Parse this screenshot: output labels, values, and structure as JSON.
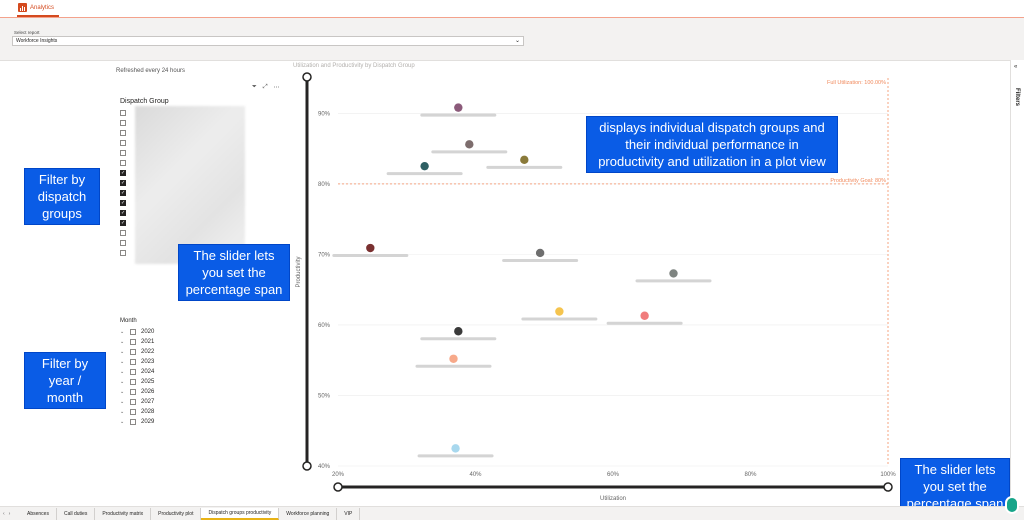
{
  "app": {
    "tab_label": "Analytics"
  },
  "report_selector": {
    "label": "Select report",
    "value": "Workforce Insights"
  },
  "filters_pane": {
    "label": "Filters",
    "collapse_icon": "double-chevron-icon"
  },
  "slicer": {
    "refresh_text": "Refreshed every 24 hours",
    "dispatch_group_title": "Dispatch Group",
    "dispatch_checks": [
      false,
      false,
      false,
      false,
      false,
      false,
      true,
      true,
      true,
      true,
      true,
      true,
      false,
      false,
      false
    ],
    "month_title": "Month",
    "years": [
      "2020",
      "2021",
      "2022",
      "2023",
      "2024",
      "2025",
      "2026",
      "2027",
      "2028",
      "2029"
    ]
  },
  "callouts": {
    "filter_dispatch": "Filter by dispatch groups",
    "slider_left": "The slider lets you set the percentage span",
    "filter_year": "Filter by year / month",
    "plot_desc": "displays individual dispatch groups and their individual performance in productivity and utilization in a plot view",
    "slider_bottom": "The slider lets you set the percentage span"
  },
  "chart_data": {
    "type": "scatter",
    "title": "Utilization and Productivity by Dispatch Group",
    "xlabel": "Utilization",
    "ylabel": "Productivity",
    "xlim": [
      20,
      100
    ],
    "ylim": [
      40,
      95
    ],
    "x_ticks": [
      "20%",
      "40%",
      "60%",
      "80%",
      "100%"
    ],
    "y_ticks": [
      "40%",
      "50%",
      "60%",
      "70%",
      "80%",
      "90%"
    ],
    "reference_lines": [
      {
        "label": "Full Utilization: 100.00%",
        "axis": "x",
        "value": 100
      },
      {
        "label": "Productivity Goal: 80%",
        "axis": "y",
        "value": 80
      }
    ],
    "points": [
      {
        "x": 37.5,
        "y": 90.8,
        "color": "#8b5a7a"
      },
      {
        "x": 39.1,
        "y": 85.6,
        "color": "#7d6d6d"
      },
      {
        "x": 47.1,
        "y": 83.4,
        "color": "#8a7a3a"
      },
      {
        "x": 32.6,
        "y": 82.5,
        "color": "#2e5f63"
      },
      {
        "x": 24.7,
        "y": 70.9,
        "color": "#7a3030"
      },
      {
        "x": 49.4,
        "y": 70.2,
        "color": "#6e6e6e"
      },
      {
        "x": 68.8,
        "y": 67.3,
        "color": "#7e8481"
      },
      {
        "x": 52.2,
        "y": 61.9,
        "color": "#f5c44e"
      },
      {
        "x": 64.6,
        "y": 61.3,
        "color": "#f07c7c"
      },
      {
        "x": 37.5,
        "y": 59.1,
        "color": "#3a3a3a"
      },
      {
        "x": 36.8,
        "y": 55.2,
        "color": "#f7a98a"
      },
      {
        "x": 37.1,
        "y": 42.5,
        "color": "#a8d8ee"
      }
    ],
    "grid": true
  },
  "bottom_tabs": [
    {
      "label": "Absences",
      "active": false
    },
    {
      "label": "Call duties",
      "active": false
    },
    {
      "label": "Productivity matrix",
      "active": false
    },
    {
      "label": "Productivity plot",
      "active": false
    },
    {
      "label": "Dispatch groups productivity",
      "active": true
    },
    {
      "label": "Workforce planning",
      "active": false
    },
    {
      "label": "VIP",
      "active": false
    }
  ]
}
